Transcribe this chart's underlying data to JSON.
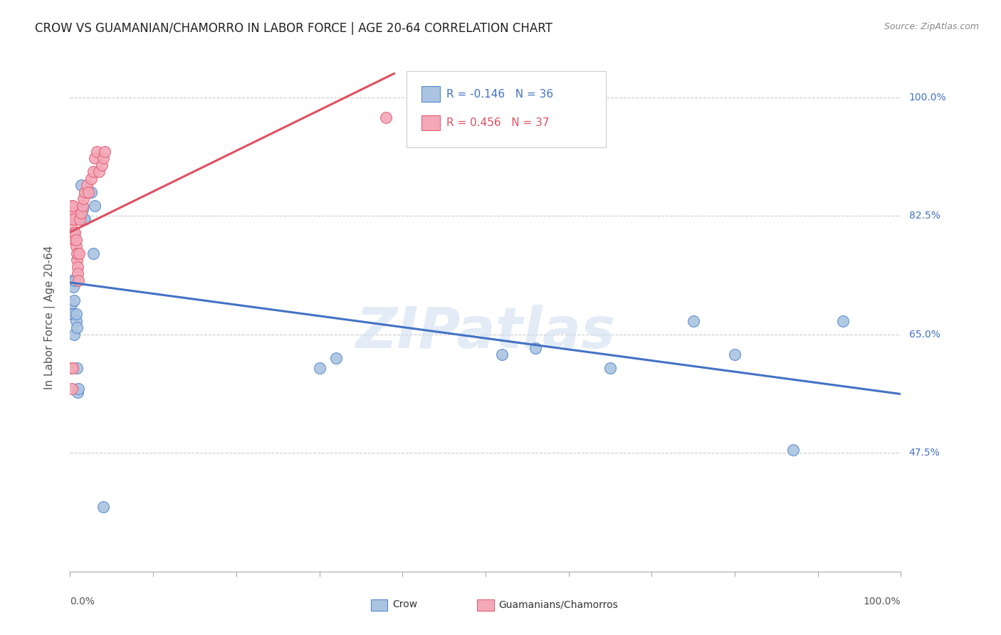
{
  "title": "CROW VS GUAMANIAN/CHAMORRO IN LABOR FORCE | AGE 20-64 CORRELATION CHART",
  "source": "Source: ZipAtlas.com",
  "ylabel": "In Labor Force | Age 20-64",
  "ylabel_right_labels": [
    "100.0%",
    "82.5%",
    "65.0%",
    "47.5%"
  ],
  "ylabel_right_y": [
    1.0,
    0.825,
    0.65,
    0.475
  ],
  "crow_R": -0.146,
  "crow_N": 36,
  "guam_R": 0.456,
  "guam_N": 37,
  "crow_color": "#aac4e2",
  "guam_color": "#f4a8b8",
  "crow_edge_color": "#5588cc",
  "guam_edge_color": "#e06070",
  "crow_line_color": "#4472c4",
  "guam_line_color": "#e05060",
  "watermark": "ZIPatlas",
  "xlim": [
    0.0,
    1.0
  ],
  "ylim": [
    0.3,
    1.05
  ],
  "crow_x": [
    0.001,
    0.001,
    0.002,
    0.003,
    0.003,
    0.004,
    0.005,
    0.006,
    0.007,
    0.008,
    0.009,
    0.01,
    0.012,
    0.013,
    0.015,
    0.016,
    0.018,
    0.025,
    0.028,
    0.03,
    0.04,
    0.001,
    0.002,
    0.003,
    0.005,
    0.007,
    0.008,
    0.3,
    0.32,
    0.52,
    0.56,
    0.65,
    0.75,
    0.8,
    0.87,
    0.93
  ],
  "crow_y": [
    0.695,
    0.68,
    0.73,
    0.68,
    0.835,
    0.72,
    0.65,
    0.73,
    0.67,
    0.6,
    0.565,
    0.57,
    0.835,
    0.87,
    0.835,
    0.82,
    0.82,
    0.86,
    0.77,
    0.84,
    0.395,
    0.82,
    0.82,
    0.82,
    0.7,
    0.68,
    0.66,
    0.6,
    0.615,
    0.62,
    0.63,
    0.6,
    0.67,
    0.62,
    0.48,
    0.67
  ],
  "guam_x": [
    0.001,
    0.001,
    0.002,
    0.002,
    0.003,
    0.003,
    0.004,
    0.005,
    0.005,
    0.006,
    0.007,
    0.007,
    0.008,
    0.008,
    0.009,
    0.009,
    0.01,
    0.011,
    0.012,
    0.013,
    0.015,
    0.016,
    0.018,
    0.02,
    0.022,
    0.025,
    0.028,
    0.03,
    0.032,
    0.035,
    0.038,
    0.04,
    0.042,
    0.001,
    0.002,
    0.003,
    0.38
  ],
  "guam_y": [
    0.82,
    0.81,
    0.83,
    0.84,
    0.83,
    0.84,
    0.82,
    0.8,
    0.79,
    0.8,
    0.78,
    0.79,
    0.76,
    0.77,
    0.75,
    0.74,
    0.73,
    0.77,
    0.82,
    0.83,
    0.84,
    0.85,
    0.86,
    0.87,
    0.86,
    0.88,
    0.89,
    0.91,
    0.92,
    0.89,
    0.9,
    0.91,
    0.92,
    0.6,
    0.57,
    0.6,
    0.97
  ]
}
